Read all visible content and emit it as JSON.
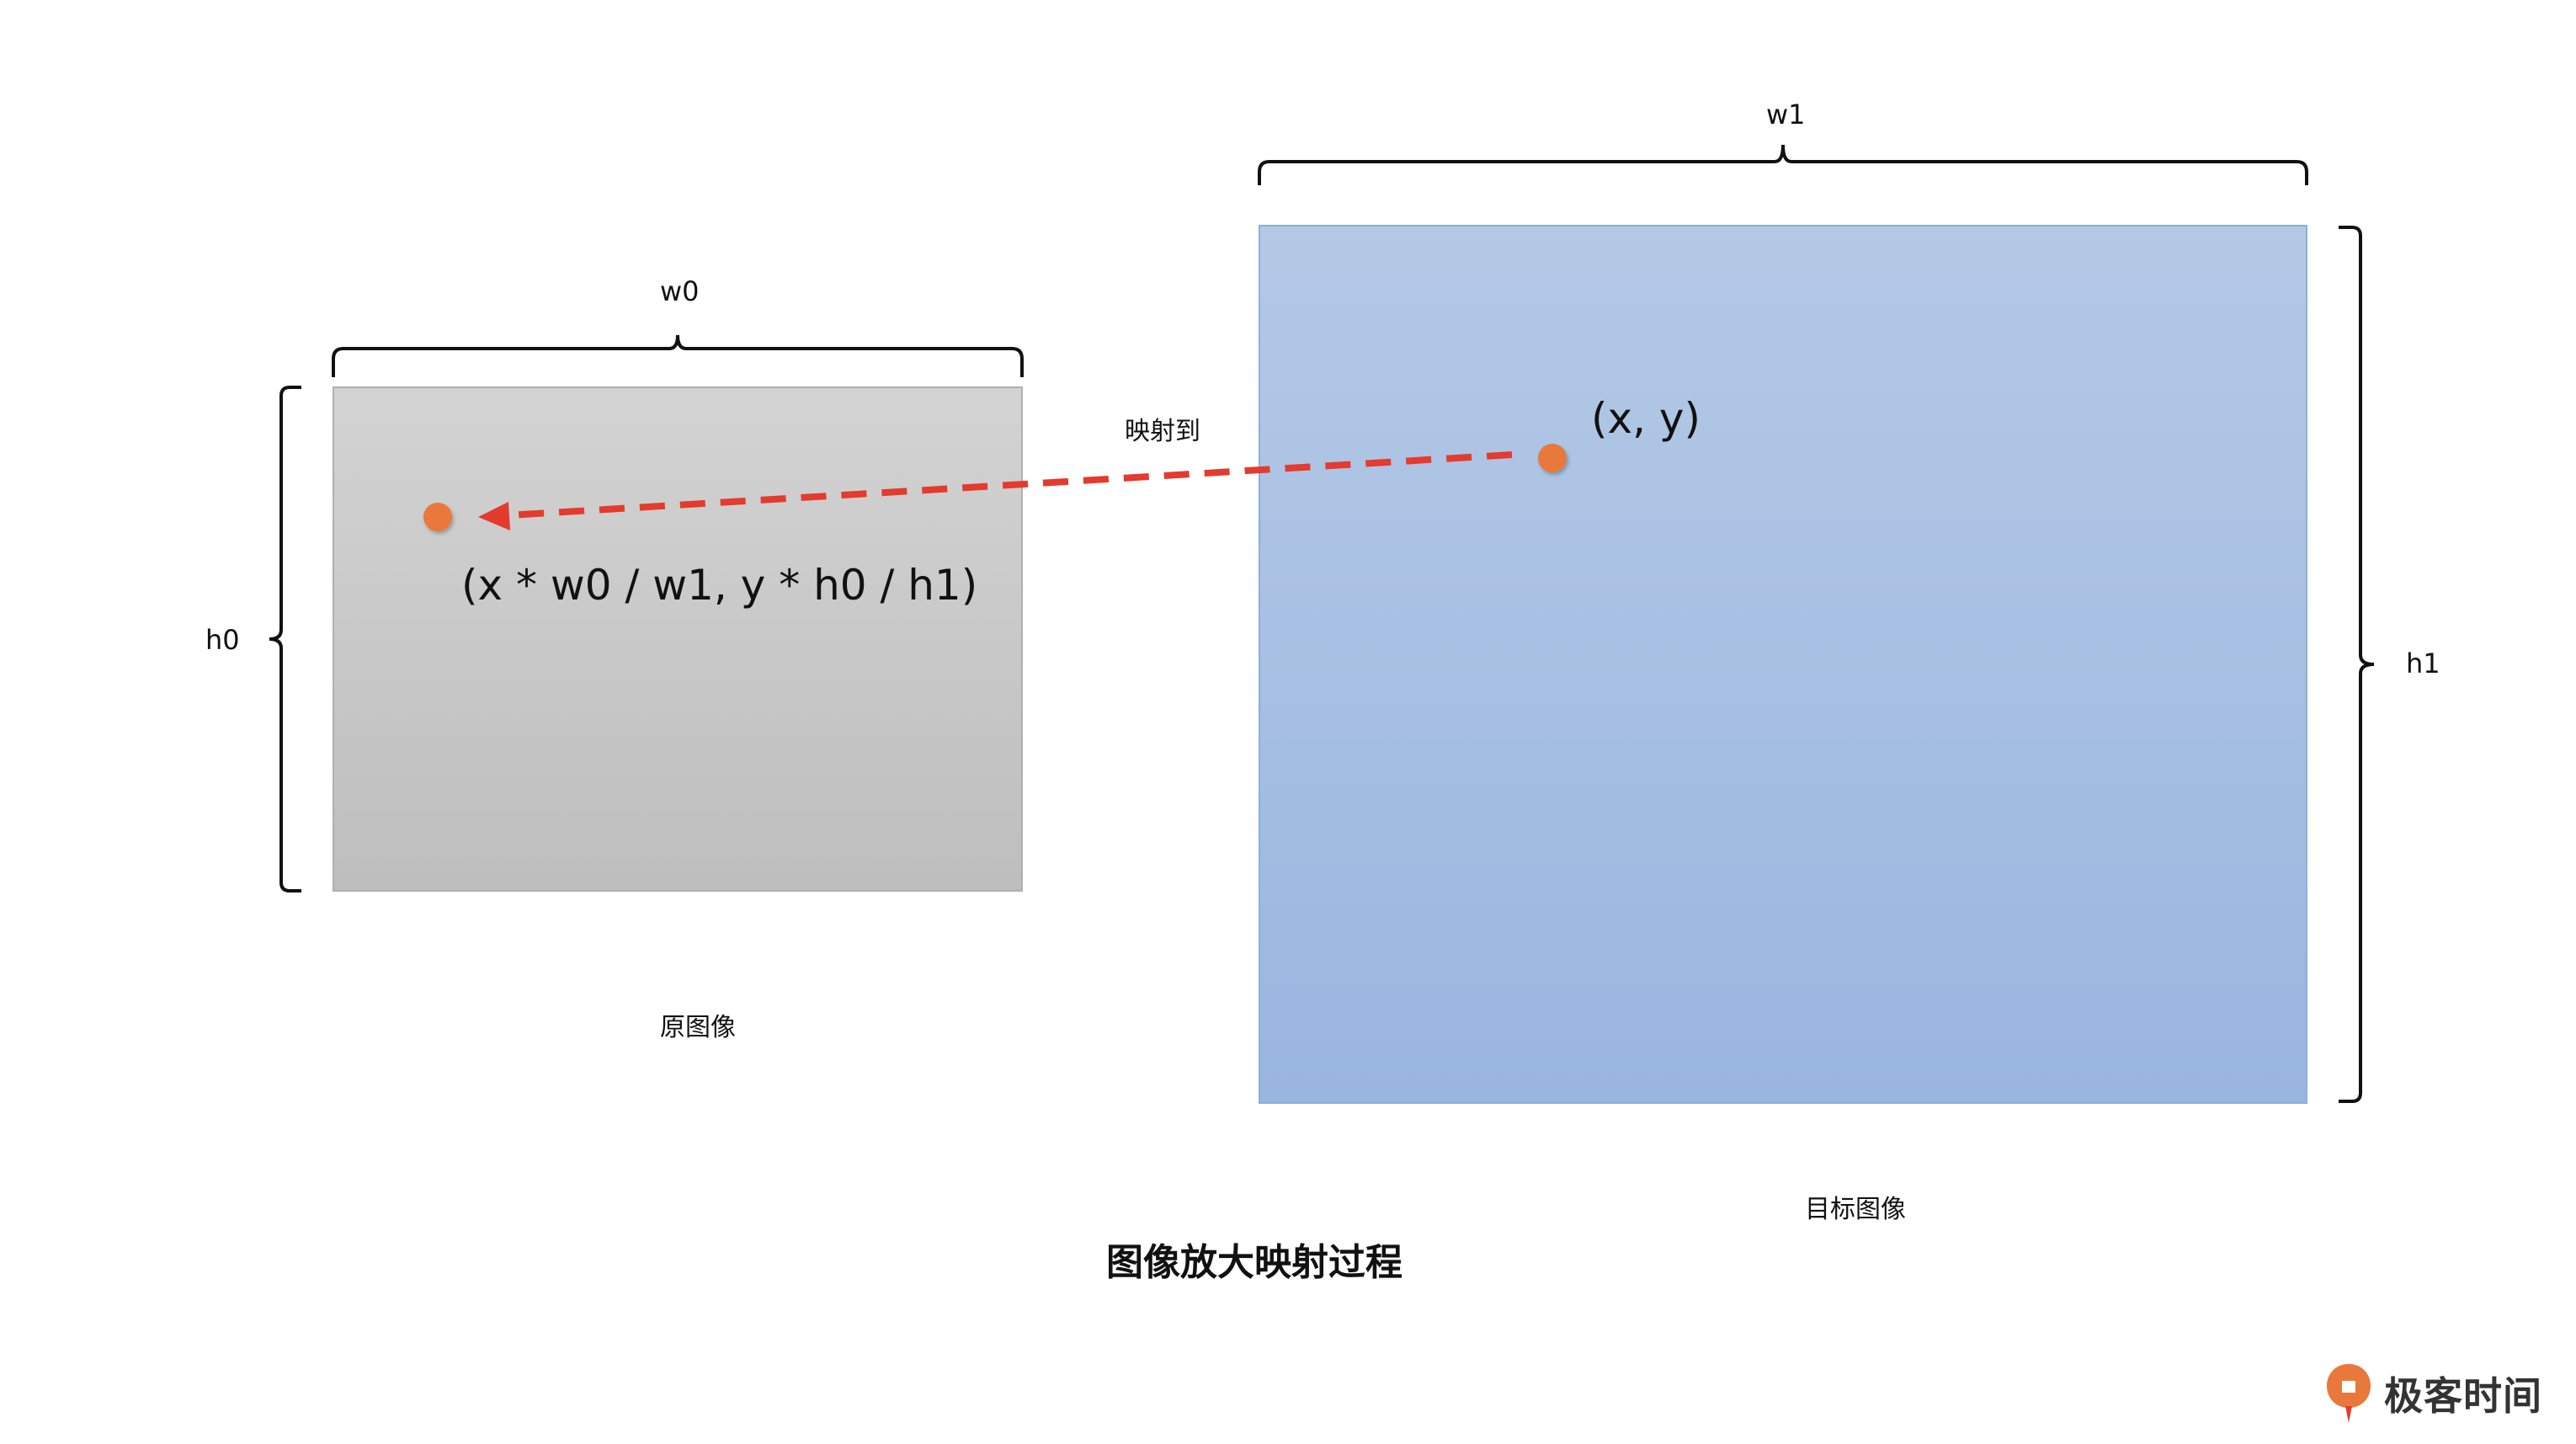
{
  "diagram": {
    "title": "图像放大映射过程",
    "source_image": {
      "caption": "原图像",
      "width_label": "w0",
      "height_label": "h0",
      "point_label": "(x * w0 / w1,  y * h0 / h1)"
    },
    "target_image": {
      "caption": "目标图像",
      "width_label": "w1",
      "height_label": "h1",
      "point_label": "(x,  y)"
    },
    "arrow_label": "映射到"
  },
  "logo": {
    "text": "极客时间"
  },
  "colors": {
    "source_fill": "#c4c4c4",
    "target_fill": "#a3bde3",
    "arrow": "#e33b2e",
    "point": "#e9783b"
  }
}
